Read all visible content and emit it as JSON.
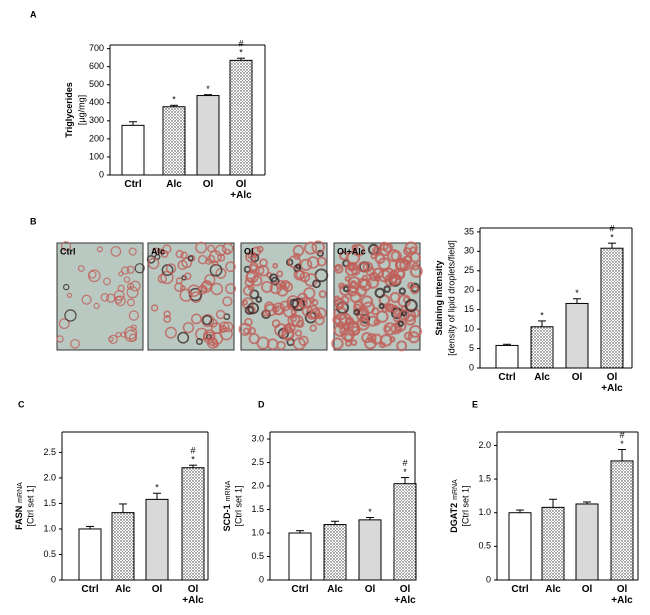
{
  "chart_data": [
    {
      "type": "bar",
      "panel": "A",
      "ylabel": "Triglycerides",
      "ylabel_sub": "[µg/mg]",
      "categories": [
        "Ctrl",
        "Alc",
        "Ol",
        "Ol +Alc"
      ],
      "values": [
        275,
        378,
        440,
        635
      ],
      "errors": [
        20,
        8,
        5,
        12
      ],
      "fills": [
        "#ffffff",
        "dots",
        "#d9d9d9",
        "dots"
      ],
      "annotations": [
        {
          "index": 1,
          "labels": [
            "*"
          ]
        },
        {
          "index": 2,
          "labels": [
            "*"
          ]
        },
        {
          "index": 3,
          "labels": [
            "*",
            "#"
          ]
        }
      ],
      "ylim": [
        0,
        720
      ],
      "yticks": [
        0,
        100,
        200,
        300,
        400,
        500,
        600,
        700
      ]
    },
    {
      "type": "bar",
      "panel": "B",
      "ylabel": "Staining intensity",
      "ylabel_sub": "[density of lipid droplets/field]",
      "image_labels": [
        "Ctrl",
        "Alc",
        "Ol",
        "Ol+Alc"
      ],
      "categories": [
        "Ctrl",
        "Alc",
        "Ol",
        "Ol +Alc"
      ],
      "values": [
        5.8,
        10.6,
        16.6,
        30.8
      ],
      "errors": [
        0.3,
        1.5,
        1.2,
        1.3
      ],
      "fills": [
        "#ffffff",
        "dots",
        "#d9d9d9",
        "dots"
      ],
      "annotations": [
        {
          "index": 1,
          "labels": [
            "*"
          ]
        },
        {
          "index": 2,
          "labels": [
            "*"
          ]
        },
        {
          "index": 3,
          "labels": [
            "*",
            "#"
          ]
        }
      ],
      "ylim": [
        0,
        36
      ],
      "yticks": [
        0,
        5,
        10,
        15,
        20,
        25,
        30,
        35
      ]
    },
    {
      "type": "bar",
      "panel": "C",
      "ylabel": "FASN",
      "ylabel_small": "mRNA",
      "ylabel_sub": "[Ctrl set 1]",
      "categories": [
        "Ctrl",
        "Alc",
        "Ol",
        "Ol +Alc"
      ],
      "values": [
        1.0,
        1.32,
        1.58,
        2.2
      ],
      "errors": [
        0.05,
        0.17,
        0.12,
        0.05
      ],
      "fills": [
        "#ffffff",
        "dots",
        "#d9d9d9",
        "dots"
      ],
      "annotations": [
        {
          "index": 2,
          "labels": [
            "*"
          ]
        },
        {
          "index": 3,
          "labels": [
            "*",
            "#"
          ]
        }
      ],
      "ylim": [
        0,
        2.9
      ],
      "yticks": [
        0,
        0.5,
        {
          "value": 1,
          "label": "1.0"
        },
        1.5,
        {
          "value": 2,
          "label": "2.0"
        },
        2.5
      ]
    },
    {
      "type": "bar",
      "panel": "D",
      "ylabel": "SCD-1",
      "ylabel_small": "mRNA",
      "ylabel_sub": "[Ctrl set 1]",
      "categories": [
        "Ctrl",
        "Alc",
        "Ol",
        "Ol +Alc"
      ],
      "values": [
        1.0,
        1.18,
        1.28,
        2.05
      ],
      "errors": [
        0.05,
        0.07,
        0.05,
        0.13
      ],
      "fills": [
        "#ffffff",
        "dots",
        "#d9d9d9",
        "dots"
      ],
      "annotations": [
        {
          "index": 2,
          "labels": [
            "*"
          ]
        },
        {
          "index": 3,
          "labels": [
            "*",
            "#"
          ]
        }
      ],
      "ylim": [
        0,
        3.15
      ],
      "yticks": [
        0,
        0.5,
        {
          "value": 1,
          "label": "1.0"
        },
        1.5,
        {
          "value": 2,
          "label": "2.0"
        },
        2.5,
        {
          "value": 3,
          "label": "3.0"
        }
      ]
    },
    {
      "type": "bar",
      "panel": "E",
      "ylabel": "DGAT2",
      "ylabel_small": "mRNA",
      "ylabel_sub": "[Ctrl set 1]",
      "categories": [
        "Ctrl",
        "Alc",
        "Ol",
        "Ol +Alc"
      ],
      "values": [
        1.0,
        1.08,
        1.13,
        1.77
      ],
      "errors": [
        0.04,
        0.12,
        0.03,
        0.17
      ],
      "fills": [
        "#ffffff",
        "dots",
        "#d9d9d9",
        "dots"
      ],
      "annotations": [
        {
          "index": 3,
          "labels": [
            "*",
            "#"
          ]
        }
      ],
      "ylim": [
        0,
        2.2
      ],
      "yticks": [
        0,
        0.5,
        {
          "value": 1,
          "label": "1.0"
        },
        1.5,
        {
          "value": 2,
          "label": "2.0"
        }
      ]
    }
  ]
}
